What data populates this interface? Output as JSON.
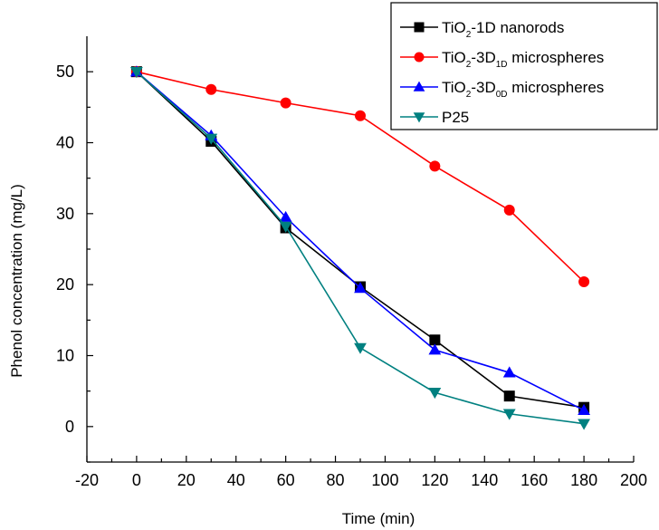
{
  "chart_data": {
    "type": "line",
    "xlabel": "Time (min)",
    "ylabel": "Phenol concentration (mg/L)",
    "xlim": [
      -20,
      200
    ],
    "ylim": [
      -5,
      55
    ],
    "xticks": [
      -20,
      0,
      20,
      40,
      60,
      80,
      100,
      120,
      140,
      160,
      180,
      200
    ],
    "yticks": [
      0,
      10,
      20,
      30,
      40,
      50
    ],
    "legend_position": "top-right",
    "x": [
      0,
      30,
      60,
      90,
      120,
      150,
      180
    ],
    "series": [
      {
        "name": "TiO2-1D nanorods",
        "label_parts": [
          {
            "t": "TiO"
          },
          {
            "t": "2",
            "sub": true
          },
          {
            "t": "-1D nanorods"
          }
        ],
        "color": "#000000",
        "marker": "square",
        "values": [
          50,
          40.2,
          28,
          19.7,
          12.2,
          4.3,
          2.7
        ]
      },
      {
        "name": "TiO2-3D1D microspheres",
        "label_parts": [
          {
            "t": "TiO"
          },
          {
            "t": "2",
            "sub": true
          },
          {
            "t": "-3D"
          },
          {
            "t": "1D",
            "sub": true
          },
          {
            "t": " microspheres"
          }
        ],
        "color": "#ff0000",
        "marker": "circle",
        "values": [
          50,
          47.5,
          45.6,
          43.8,
          36.7,
          30.5,
          20.4
        ]
      },
      {
        "name": "TiO2-3D0D microspheres",
        "label_parts": [
          {
            "t": "TiO"
          },
          {
            "t": "2",
            "sub": true
          },
          {
            "t": "-3D"
          },
          {
            "t": "0D",
            "sub": true
          },
          {
            "t": " microspheres"
          }
        ],
        "color": "#0000ff",
        "marker": "triangle-up",
        "values": [
          50,
          41,
          29.5,
          19.5,
          10.8,
          7.6,
          2.3
        ]
      },
      {
        "name": "P25",
        "label_parts": [
          {
            "t": "P25"
          }
        ],
        "color": "#008080",
        "marker": "triangle-down",
        "values": [
          50,
          40.6,
          28.2,
          11.1,
          4.8,
          1.8,
          0.4
        ]
      }
    ]
  }
}
